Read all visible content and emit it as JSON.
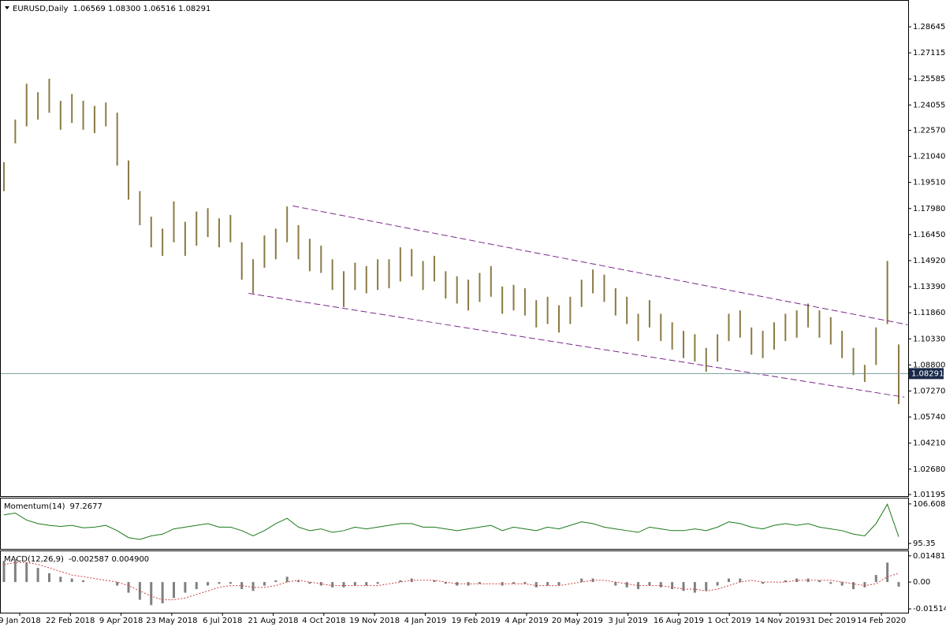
{
  "chart_data": [
    {
      "type": "ohlc",
      "title": "EURUSD,Daily",
      "ohlc_label": "1.06569 1.08300 1.06516 1.08291",
      "color": "#8a7a45",
      "ylim": [
        1.011,
        1.3017
      ],
      "yticks": [
        1.28645,
        1.27115,
        1.25585,
        1.24055,
        {
          "value": 1.2257,
          "label": "1.22570"
        },
        {
          "value": 1.2104,
          "label": "1.21040"
        },
        {
          "value": 1.1951,
          "label": "1.19510"
        },
        {
          "value": 1.1798,
          "label": "1.17980"
        },
        {
          "value": 1.1645,
          "label": "1.16450"
        },
        {
          "value": 1.1492,
          "label": "1.14920"
        },
        {
          "value": 1.1339,
          "label": "1.13390"
        },
        {
          "value": 1.1186,
          "label": "1.11860"
        },
        {
          "value": 1.1033,
          "label": "1.10330"
        },
        {
          "value": 1.088,
          "label": "1.08800"
        },
        {
          "value": 1.0727,
          "label": "1.07270"
        },
        {
          "value": 1.0574,
          "label": "1.05740"
        },
        {
          "value": 1.0421,
          "label": "1.04210"
        },
        {
          "value": 1.0268,
          "label": "1.02680"
        },
        1.01195
      ],
      "current_price": 1.08291,
      "x_labels": [
        "9 Jan 2018",
        "22 Feb 2018",
        "9 Apr 2018",
        "23 May 2018",
        "6 Jul 2018",
        "21 Aug 2018",
        "4 Oct 2018",
        "19 Nov 2018",
        "4 Jan 2019",
        "19 Feb 2019",
        "4 Apr 2019",
        "20 May 2019",
        "3 Jul 2019",
        "16 Aug 2019",
        "1 Oct 2019",
        "14 Nov 2019",
        "31 Dec 2019",
        "14 Feb 2020"
      ],
      "high": [
        1.207,
        1.232,
        1.253,
        1.248,
        1.256,
        1.243,
        1.247,
        1.243,
        1.24,
        1.242,
        1.236,
        1.208,
        1.19,
        1.175,
        1.168,
        1.184,
        1.172,
        1.178,
        1.18,
        1.174,
        1.176,
        1.16,
        1.15,
        1.164,
        1.168,
        1.181,
        1.17,
        1.162,
        1.158,
        1.15,
        1.143,
        1.148,
        1.146,
        1.15,
        1.15,
        1.157,
        1.156,
        1.149,
        1.152,
        1.143,
        1.14,
        1.138,
        1.142,
        1.146,
        1.134,
        1.135,
        1.133,
        1.126,
        1.128,
        1.123,
        1.128,
        1.138,
        1.144,
        1.141,
        1.133,
        1.128,
        1.118,
        1.126,
        1.118,
        1.113,
        1.108,
        1.106,
        1.098,
        1.106,
        1.118,
        1.12,
        1.11,
        1.108,
        1.113,
        1.118,
        1.12,
        1.124,
        1.12,
        1.116,
        1.108,
        1.098,
        1.088,
        1.11,
        1.149,
        1.1
      ],
      "low": [
        1.19,
        1.218,
        1.228,
        1.232,
        1.236,
        1.226,
        1.23,
        1.226,
        1.224,
        1.228,
        1.205,
        1.185,
        1.17,
        1.157,
        1.152,
        1.16,
        1.152,
        1.158,
        1.163,
        1.157,
        1.16,
        1.138,
        1.13,
        1.145,
        1.15,
        1.16,
        1.15,
        1.143,
        1.142,
        1.132,
        1.122,
        1.132,
        1.13,
        1.132,
        1.133,
        1.137,
        1.14,
        1.132,
        1.137,
        1.127,
        1.124,
        1.12,
        1.125,
        1.128,
        1.118,
        1.12,
        1.117,
        1.11,
        1.112,
        1.107,
        1.112,
        1.122,
        1.13,
        1.125,
        1.117,
        1.112,
        1.102,
        1.11,
        1.102,
        1.097,
        1.092,
        1.09,
        1.084,
        1.09,
        1.102,
        1.104,
        1.094,
        1.092,
        1.097,
        1.102,
        1.104,
        1.11,
        1.104,
        1.1,
        1.092,
        1.082,
        1.078,
        1.088,
        1.112,
        1.065
      ],
      "trendlines": [
        {
          "x": [
            25.5,
            79.8
          ],
          "y": [
            1.1813,
            1.1116
          ],
          "color": "#7a2a8a"
        },
        {
          "x": [
            21.6,
            79.5
          ],
          "y": [
            1.13,
            1.0691
          ],
          "color": "#7a2a8a"
        }
      ]
    },
    {
      "type": "line",
      "title": "Momentum(14)",
      "value_label": "97.2677",
      "color": "#1a7a1a",
      "ylim": [
        93.8,
        108.15
      ],
      "yticks": [
        106.608,
        95.35
      ],
      "values": [
        103.5,
        104,
        102,
        101,
        100.5,
        100.2,
        100.5,
        99.8,
        100,
        100.5,
        99,
        97,
        96.5,
        97.5,
        98,
        99.5,
        100,
        100.5,
        101,
        100,
        100,
        99,
        97.5,
        99,
        101,
        102.5,
        100,
        99,
        99.5,
        98.5,
        99,
        100,
        99.5,
        100,
        100.5,
        101,
        101,
        100,
        100,
        99.5,
        99,
        99.5,
        100,
        100.5,
        99,
        100,
        99.5,
        99,
        100,
        99.5,
        100.5,
        101.5,
        101,
        100,
        99.5,
        99,
        98.5,
        100,
        99.5,
        99,
        99,
        99.5,
        99,
        100,
        101.5,
        101,
        100,
        99.5,
        100.5,
        101,
        100.5,
        101,
        100,
        99.5,
        99,
        98,
        97.5,
        101,
        106.5,
        97.27
      ]
    },
    {
      "type": "macd",
      "title": "MACD(12,26,9)",
      "value_label": "-0.002587 0.004900",
      "ylim": [
        -0.0173,
        0.0174
      ],
      "yticks": [
        0.014812,
        {
          "value": 0,
          "label": "0.00"
        },
        -0.015146
      ],
      "series": [
        {
          "name": "MACD",
          "color": "#808080",
          "values": [
            0.012,
            0.013,
            0.011,
            0.008,
            0.005,
            0.003,
            0.002,
            0.001,
            0,
            0,
            -0.002,
            -0.006,
            -0.01,
            -0.013,
            -0.012,
            -0.009,
            -0.006,
            -0.004,
            -0.002,
            -0.001,
            -0.001,
            -0.004,
            -0.005,
            -0.002,
            0.001,
            0.003,
            0.001,
            -0.001,
            -0.002,
            -0.003,
            -0.003,
            -0.002,
            -0.002,
            -0.001,
            0,
            0.001,
            0.002,
            0,
            0.001,
            -0.001,
            -0.002,
            -0.002,
            -0.001,
            0,
            -0.002,
            -0.001,
            -0.001,
            -0.003,
            -0.002,
            -0.002,
            0,
            0.002,
            0.002,
            0,
            -0.002,
            -0.003,
            -0.004,
            -0.002,
            -0.003,
            -0.004,
            -0.005,
            -0.006,
            -0.005,
            -0.002,
            0.002,
            0.002,
            0,
            -0.001,
            0,
            0.001,
            0.002,
            0.002,
            0.001,
            -0.001,
            -0.002,
            -0.004,
            -0.003,
            0.004,
            0.011,
            -0.002587
          ]
        },
        {
          "name": "Signal",
          "color": "#d04040",
          "values": [
            0.01,
            0.011,
            0.011,
            0.01,
            0.008,
            0.006,
            0.004,
            0.003,
            0.002,
            0.001,
            0,
            -0.002,
            -0.005,
            -0.008,
            -0.01,
            -0.01,
            -0.009,
            -0.007,
            -0.005,
            -0.003,
            -0.002,
            -0.002,
            -0.003,
            -0.003,
            -0.002,
            0,
            0.001,
            0,
            -0.001,
            -0.002,
            -0.002,
            -0.002,
            -0.002,
            -0.002,
            -0.001,
            0,
            0.001,
            0.001,
            0.001,
            0,
            -0.001,
            -0.001,
            -0.001,
            -0.001,
            -0.001,
            -0.001,
            -0.001,
            -0.002,
            -0.002,
            -0.002,
            -0.001,
            0,
            0.001,
            0.001,
            0,
            -0.001,
            -0.002,
            -0.002,
            -0.002,
            -0.003,
            -0.004,
            -0.004,
            -0.005,
            -0.004,
            -0.002,
            0,
            0.001,
            0,
            0,
            0,
            0.001,
            0.001,
            0.001,
            0.001,
            0,
            -0.001,
            -0.002,
            -0.001,
            0.003,
            0.0049
          ]
        }
      ]
    }
  ]
}
